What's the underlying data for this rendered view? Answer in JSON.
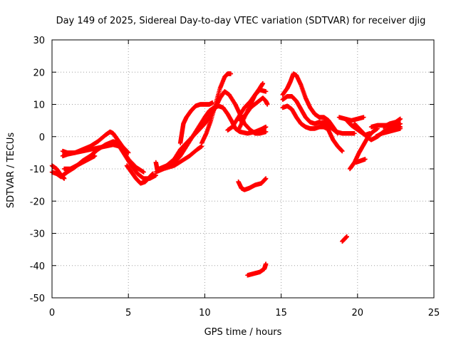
{
  "chart_data": {
    "type": "scatter",
    "title": "Day 149 of 2025, Sidereal Day-to-day VTEC variation (SDTVAR) for receiver djig",
    "xlabel": "GPS time / hours",
    "ylabel": "SDTVAR / TECUs",
    "xlim": [
      0,
      25
    ],
    "ylim": [
      -50,
      30
    ],
    "xticks": [
      0,
      5,
      10,
      15,
      20,
      25
    ],
    "yticks": [
      -50,
      -40,
      -30,
      -20,
      -10,
      0,
      10,
      20,
      30
    ],
    "grid": true,
    "marker": "+",
    "color": "#ff0000",
    "series": [
      {
        "name": "s1",
        "points": [
          [
            0,
            -9
          ],
          [
            0.3,
            -10
          ],
          [
            0.6,
            -12
          ],
          [
            0.8,
            -13
          ]
        ]
      },
      {
        "name": "s2",
        "points": [
          [
            0,
            -11
          ],
          [
            0.3,
            -11.5
          ],
          [
            0.6,
            -12.5
          ]
        ]
      },
      {
        "name": "s3",
        "points": [
          [
            0.7,
            -12
          ],
          [
            1,
            -11
          ],
          [
            1.5,
            -9.5
          ],
          [
            2,
            -7.5
          ],
          [
            2.5,
            -6
          ],
          [
            3,
            -4
          ],
          [
            3.5,
            -2.5
          ],
          [
            4,
            -1.5
          ],
          [
            4.3,
            -2
          ],
          [
            4.6,
            -4
          ],
          [
            5,
            -7
          ],
          [
            5.5,
            -9.5
          ],
          [
            6,
            -11
          ]
        ]
      },
      {
        "name": "s4",
        "points": [
          [
            0.7,
            -6
          ],
          [
            1,
            -5.5
          ],
          [
            1.5,
            -5
          ],
          [
            2,
            -4
          ],
          [
            2.5,
            -3
          ],
          [
            3,
            -1.5
          ],
          [
            3.5,
            0.5
          ],
          [
            3.8,
            1.5
          ],
          [
            4,
            1
          ],
          [
            4.3,
            -1
          ],
          [
            4.6,
            -3
          ],
          [
            5,
            -5
          ]
        ]
      },
      {
        "name": "s5",
        "points": [
          [
            0.7,
            -4.5
          ],
          [
            1,
            -5
          ],
          [
            1.5,
            -5
          ],
          [
            2,
            -4.5
          ],
          [
            2.5,
            -4
          ],
          [
            3,
            -3.5
          ],
          [
            3.5,
            -3
          ],
          [
            4,
            -2.5
          ],
          [
            4.4,
            -3
          ],
          [
            4.8,
            -6
          ],
          [
            5.2,
            -9
          ],
          [
            5.6,
            -11.5
          ],
          [
            6,
            -13
          ],
          [
            6.4,
            -13
          ],
          [
            6.8,
            -12
          ]
        ]
      },
      {
        "name": "s6",
        "points": [
          [
            0.8,
            -10
          ],
          [
            1.2,
            -10
          ],
          [
            1.6,
            -9
          ],
          [
            2,
            -8
          ],
          [
            2.4,
            -7
          ],
          [
            2.8,
            -6
          ]
        ]
      },
      {
        "name": "s7",
        "points": [
          [
            4.9,
            -9
          ],
          [
            5.2,
            -11
          ],
          [
            5.5,
            -13
          ],
          [
            5.8,
            -14.5
          ],
          [
            6.1,
            -14
          ],
          [
            6.4,
            -12.5
          ],
          [
            6.6,
            -11.5
          ]
        ]
      },
      {
        "name": "s8",
        "points": [
          [
            6.8,
            -8
          ],
          [
            6.9,
            -10.5
          ]
        ]
      },
      {
        "name": "s9",
        "points": [
          [
            6.8,
            -11
          ],
          [
            7.3,
            -10
          ],
          [
            8,
            -9
          ],
          [
            8.5,
            -7.5
          ],
          [
            9,
            -6
          ],
          [
            9.5,
            -4
          ],
          [
            9.8,
            -3
          ]
        ]
      },
      {
        "name": "s10",
        "points": [
          [
            7,
            -10
          ],
          [
            7.5,
            -9
          ],
          [
            8,
            -8
          ],
          [
            8.4,
            -6
          ],
          [
            8.8,
            -3
          ],
          [
            9.2,
            0
          ],
          [
            9.6,
            3
          ],
          [
            10,
            6
          ],
          [
            10.3,
            8
          ],
          [
            10.6,
            9
          ],
          [
            10.9,
            9.5
          ],
          [
            11.2,
            9
          ],
          [
            11.5,
            7
          ],
          [
            11.8,
            4.5
          ],
          [
            12,
            2.5
          ],
          [
            12.3,
            1.5
          ],
          [
            12.8,
            1
          ],
          [
            13.3,
            1.5
          ],
          [
            13.8,
            2.5
          ],
          [
            14,
            3
          ]
        ]
      },
      {
        "name": "s11",
        "points": [
          [
            7.5,
            -9
          ],
          [
            8,
            -7
          ],
          [
            8.4,
            -4
          ],
          [
            8.8,
            -2
          ],
          [
            9.2,
            0
          ],
          [
            9.6,
            2
          ],
          [
            10,
            4
          ],
          [
            10.3,
            6
          ],
          [
            10.7,
            9
          ],
          [
            11,
            12
          ],
          [
            11.3,
            14
          ],
          [
            11.6,
            13
          ],
          [
            12,
            10
          ],
          [
            12.3,
            7
          ],
          [
            12.6,
            4
          ],
          [
            13,
            2
          ],
          [
            13.3,
            1
          ],
          [
            13.6,
            1
          ],
          [
            14,
            1.5
          ]
        ]
      },
      {
        "name": "s12",
        "points": [
          [
            8.4,
            -2
          ],
          [
            8.5,
            1
          ],
          [
            8.6,
            4
          ],
          [
            8.8,
            6
          ],
          [
            9.1,
            8
          ],
          [
            9.4,
            9.5
          ],
          [
            9.7,
            10
          ],
          [
            10,
            10
          ],
          [
            10.3,
            10
          ],
          [
            10.5,
            10.5
          ]
        ]
      },
      {
        "name": "s13",
        "points": [
          [
            9.8,
            -2
          ],
          [
            10.1,
            1
          ],
          [
            10.4,
            5
          ],
          [
            10.7,
            10
          ],
          [
            11,
            15
          ],
          [
            11.3,
            18.5
          ],
          [
            11.5,
            19.5
          ],
          [
            11.7,
            19.5
          ]
        ]
      },
      {
        "name": "s14",
        "points": [
          [
            11.5,
            2
          ],
          [
            11.8,
            3
          ],
          [
            12.2,
            6
          ],
          [
            12.6,
            9
          ],
          [
            13,
            11
          ],
          [
            13.3,
            13
          ],
          [
            13.6,
            14.5
          ],
          [
            14,
            14
          ]
        ]
      },
      {
        "name": "s15",
        "points": [
          [
            12.2,
            2
          ],
          [
            12.6,
            6
          ],
          [
            13,
            10
          ],
          [
            13.3,
            13
          ],
          [
            13.6,
            15
          ],
          [
            13.8,
            16.5
          ]
        ]
      },
      {
        "name": "s16",
        "points": [
          [
            12.3,
            5
          ],
          [
            12.7,
            7
          ],
          [
            13,
            9
          ],
          [
            13.4,
            10.5
          ],
          [
            13.8,
            12
          ],
          [
            14,
            11
          ],
          [
            14.1,
            10
          ]
        ]
      },
      {
        "name": "s17",
        "points": [
          [
            12.2,
            -14
          ],
          [
            12.4,
            -16
          ],
          [
            12.6,
            -16.5
          ],
          [
            12.9,
            -16
          ],
          [
            13.3,
            -15
          ],
          [
            13.7,
            -14.5
          ],
          [
            14,
            -13
          ]
        ]
      },
      {
        "name": "s18",
        "points": [
          [
            12.8,
            -43
          ],
          [
            13.2,
            -42.5
          ],
          [
            13.6,
            -42
          ],
          [
            13.9,
            -41
          ],
          [
            14,
            -39.5
          ]
        ]
      },
      {
        "name": "s19",
        "points": [
          [
            15.1,
            13
          ],
          [
            15.4,
            15
          ],
          [
            15.6,
            17
          ],
          [
            15.8,
            19.5
          ],
          [
            16,
            19
          ],
          [
            16.3,
            16
          ],
          [
            16.6,
            12
          ],
          [
            16.9,
            9
          ],
          [
            17.2,
            7
          ],
          [
            17.5,
            6
          ],
          [
            17.8,
            6
          ],
          [
            18.1,
            5
          ],
          [
            18.4,
            3
          ],
          [
            18.7,
            1
          ]
        ]
      },
      {
        "name": "s20",
        "points": [
          [
            15.1,
            9
          ],
          [
            15.4,
            9.5
          ],
          [
            15.7,
            8.5
          ],
          [
            16,
            6
          ],
          [
            16.3,
            4
          ],
          [
            16.6,
            3
          ],
          [
            16.9,
            2.5
          ],
          [
            17.2,
            2.5
          ],
          [
            17.5,
            3
          ],
          [
            17.8,
            3
          ],
          [
            18,
            2.5
          ]
        ]
      },
      {
        "name": "s21",
        "points": [
          [
            15.1,
            11.5
          ],
          [
            15.4,
            12.5
          ],
          [
            15.7,
            12.5
          ],
          [
            16,
            11
          ],
          [
            16.3,
            8.5
          ],
          [
            16.6,
            6
          ],
          [
            16.9,
            4.5
          ],
          [
            17.2,
            4
          ],
          [
            17.5,
            4.5
          ],
          [
            17.8,
            4
          ],
          [
            18.1,
            2
          ],
          [
            18.4,
            -1
          ],
          [
            18.7,
            -3
          ],
          [
            19,
            -4.5
          ]
        ]
      },
      {
        "name": "s22",
        "points": [
          [
            17.8,
            5
          ],
          [
            18.2,
            3
          ],
          [
            18.6,
            1.5
          ],
          [
            19,
            1
          ],
          [
            19.4,
            1
          ],
          [
            19.8,
            1
          ]
        ]
      },
      {
        "name": "s23",
        "points": [
          [
            18.8,
            6
          ],
          [
            19.2,
            5.5
          ],
          [
            19.6,
            5
          ],
          [
            20,
            5.5
          ],
          [
            20.4,
            6
          ]
        ]
      },
      {
        "name": "s24",
        "points": [
          [
            19.3,
            5
          ],
          [
            19.6,
            3.5
          ],
          [
            19.9,
            2.5
          ],
          [
            20.2,
            1.5
          ],
          [
            20.5,
            0.5
          ],
          [
            20.8,
            1
          ]
        ]
      },
      {
        "name": "s25",
        "points": [
          [
            19.5,
            -10
          ],
          [
            19.8,
            -8
          ],
          [
            20.1,
            -5
          ],
          [
            20.4,
            -2.5
          ],
          [
            20.7,
            0
          ],
          [
            21,
            1.5
          ],
          [
            21.3,
            2.5
          ]
        ]
      },
      {
        "name": "s26",
        "points": [
          [
            19.9,
            -8
          ],
          [
            20.2,
            -7.5
          ],
          [
            20.5,
            -7
          ]
        ]
      },
      {
        "name": "s27",
        "points": [
          [
            19.8,
            4
          ],
          [
            20.2,
            2
          ],
          [
            20.6,
            0
          ],
          [
            20.9,
            -1
          ]
        ]
      },
      {
        "name": "s28",
        "points": [
          [
            20.9,
            -1
          ],
          [
            21.3,
            0
          ],
          [
            21.7,
            1.5
          ],
          [
            22.1,
            2.5
          ],
          [
            22.5,
            3.5
          ],
          [
            22.8,
            4
          ]
        ]
      },
      {
        "name": "s29",
        "points": [
          [
            20.9,
            3
          ],
          [
            21.3,
            3.5
          ],
          [
            21.7,
            3.5
          ],
          [
            22.1,
            3.5
          ],
          [
            22.5,
            3.5
          ],
          [
            22.8,
            3
          ]
        ]
      },
      {
        "name": "s30",
        "points": [
          [
            21.2,
            0
          ],
          [
            21.6,
            1
          ],
          [
            22,
            1.5
          ],
          [
            22.4,
            2
          ],
          [
            22.8,
            2.5
          ]
        ]
      },
      {
        "name": "s31",
        "points": [
          [
            21.7,
            3
          ],
          [
            22.1,
            4
          ],
          [
            22.5,
            4.5
          ],
          [
            22.8,
            5.5
          ]
        ]
      },
      {
        "name": "s32",
        "points": [
          [
            19,
            -32.5
          ],
          [
            19.3,
            -31
          ]
        ]
      }
    ]
  }
}
